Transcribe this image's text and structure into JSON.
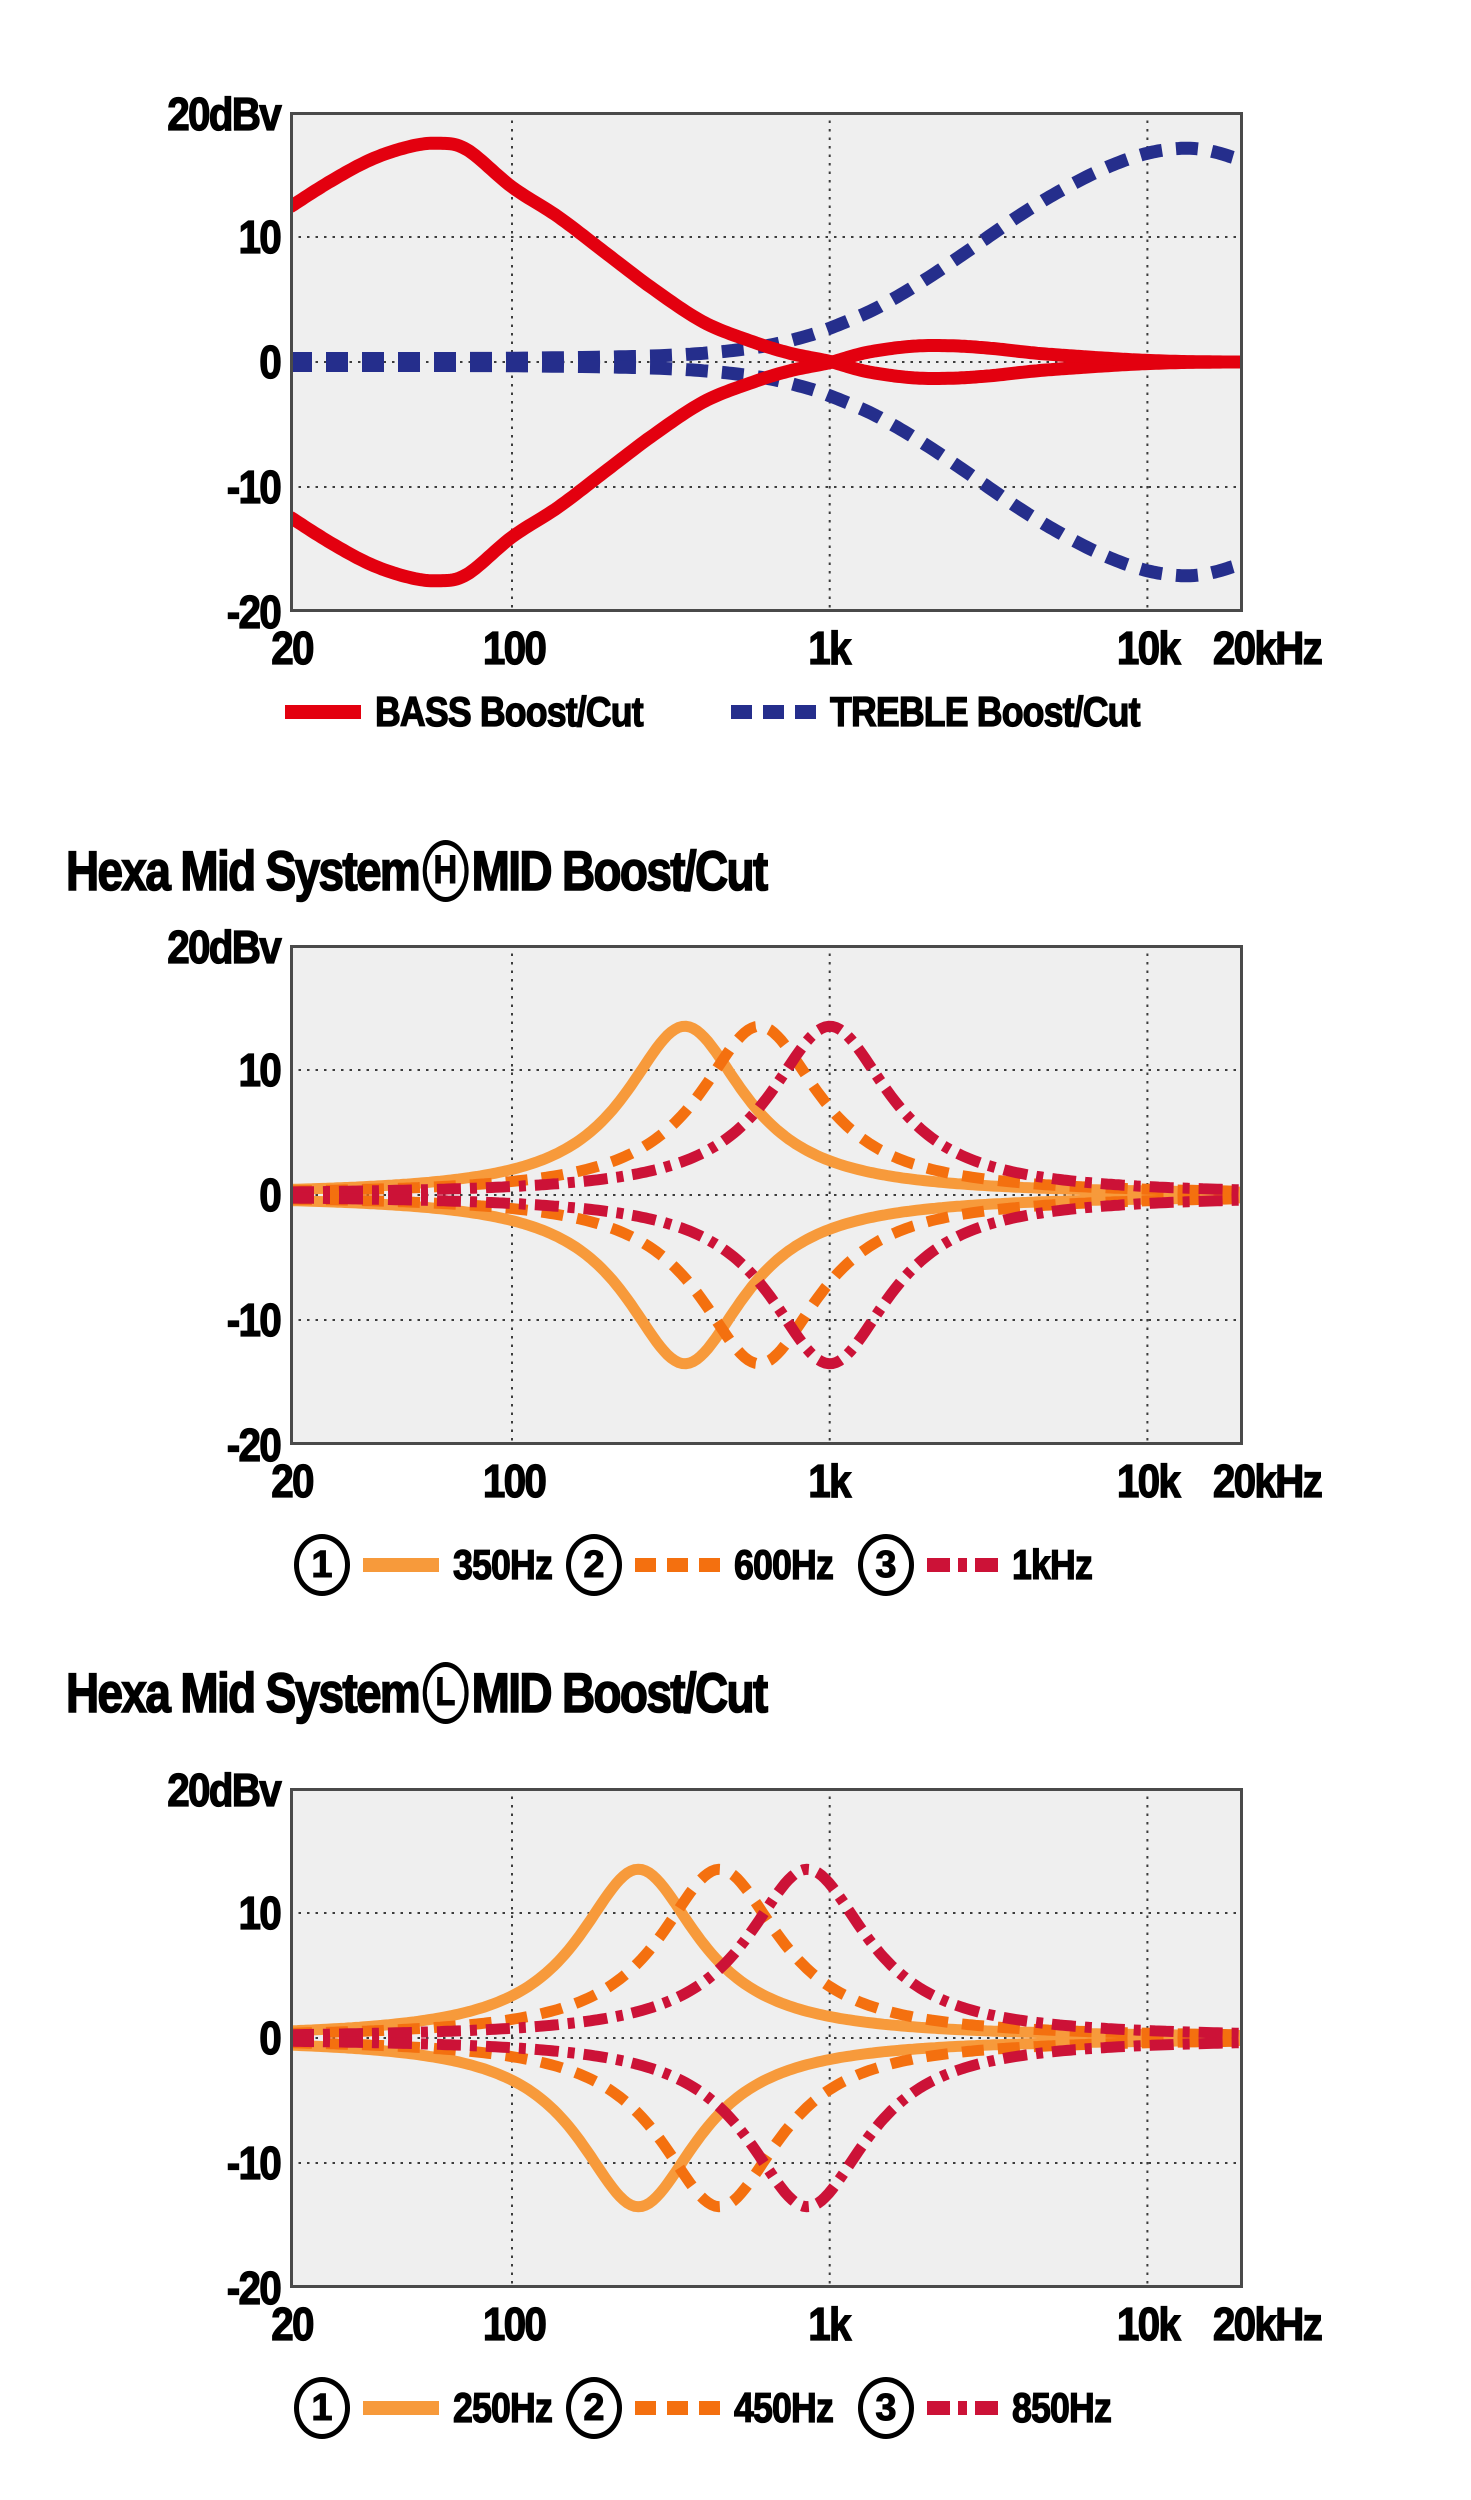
{
  "chart_data": [
    {
      "type": "line",
      "title_prefix": "",
      "title_circled": "",
      "title_suffix": "",
      "x_scale": "log",
      "x_range_hz": [
        20,
        20000
      ],
      "y_range_db": [
        -20,
        20
      ],
      "y_axis_unit_label": "20dBv",
      "y_ticks": [
        {
          "value": 10,
          "label": "10"
        },
        {
          "value": 0,
          "label": "0"
        },
        {
          "value": -10,
          "label": "-10"
        },
        {
          "value": -20,
          "label": "-20"
        }
      ],
      "x_ticks": [
        {
          "hz": 20,
          "label": "20"
        },
        {
          "hz": 100,
          "label": "100"
        },
        {
          "hz": 1000,
          "label": "1k"
        },
        {
          "hz": 10000,
          "label": "10k"
        },
        {
          "hz": 20000,
          "label": "20kHz"
        }
      ],
      "grid_x_hz": [
        100,
        1000,
        10000
      ],
      "grid_y_db": [
        10,
        0,
        -10
      ],
      "series": [
        {
          "name": "BASS Boost/Cut",
          "color": "#E3000F",
          "line": "solid",
          "stroke_width": 13,
          "mirrored": true,
          "points": [
            [
              20,
              12.4
            ],
            [
              27,
              14.5
            ],
            [
              36,
              16.2
            ],
            [
              47,
              17.2
            ],
            [
              58,
              17.5
            ],
            [
              72,
              17.0
            ],
            [
              100,
              14.0
            ],
            [
              140,
              11.6
            ],
            [
              200,
              8.6
            ],
            [
              280,
              5.8
            ],
            [
              400,
              3.2
            ],
            [
              560,
              1.7
            ],
            [
              750,
              0.7
            ],
            [
              1000,
              0.05
            ],
            [
              1300,
              -0.75
            ],
            [
              1800,
              -1.25
            ],
            [
              2400,
              -1.3
            ],
            [
              3200,
              -1.1
            ],
            [
              4500,
              -0.7
            ],
            [
              6500,
              -0.4
            ],
            [
              9000,
              -0.18
            ],
            [
              12000,
              -0.06
            ],
            [
              16000,
              -0.01
            ],
            [
              20000,
              0
            ]
          ]
        },
        {
          "name": "TREBLE Boost/Cut",
          "color": "#252E8C",
          "line": "dashed",
          "stroke_width": 13,
          "mirrored": true,
          "points": [
            [
              20,
              0.28
            ],
            [
              60,
              0.28
            ],
            [
              120,
              0.32
            ],
            [
              250,
              0.45
            ],
            [
              400,
              0.7
            ],
            [
              600,
              1.2
            ],
            [
              800,
              1.9
            ],
            [
              1000,
              2.7
            ],
            [
              1400,
              4.3
            ],
            [
              2000,
              6.6
            ],
            [
              2800,
              9.1
            ],
            [
              4000,
              11.8
            ],
            [
              5500,
              13.9
            ],
            [
              7500,
              15.6
            ],
            [
              10000,
              16.7
            ],
            [
              13000,
              17.1
            ],
            [
              16000,
              16.85
            ],
            [
              20000,
              16.1
            ]
          ]
        }
      ],
      "draw_order": [
        1,
        0
      ],
      "legend": [
        {
          "label": "BASS Boost/Cut",
          "line": "solid",
          "color": "#E3000F"
        },
        {
          "label": "TREBLE Boost/Cut",
          "line": "dashed",
          "color": "#252E8C"
        }
      ]
    },
    {
      "type": "line",
      "title_prefix": "Hexa Mid System",
      "title_circled": "H",
      "title_suffix": "MID Boost/Cut",
      "x_scale": "log",
      "x_range_hz": [
        20,
        20000
      ],
      "y_range_db": [
        -20,
        20
      ],
      "y_axis_unit_label": "20dBv",
      "y_ticks": [
        {
          "value": 10,
          "label": "10"
        },
        {
          "value": 0,
          "label": "0"
        },
        {
          "value": -10,
          "label": "-10"
        },
        {
          "value": -20,
          "label": "-20"
        }
      ],
      "x_ticks": [
        {
          "hz": 20,
          "label": "20"
        },
        {
          "hz": 100,
          "label": "100"
        },
        {
          "hz": 1000,
          "label": "1k"
        },
        {
          "hz": 10000,
          "label": "10k"
        },
        {
          "hz": 20000,
          "label": "20kHz"
        }
      ],
      "grid_x_hz": [
        100,
        1000,
        10000
      ],
      "grid_y_db": [
        10,
        0,
        -10
      ],
      "series": [
        {
          "name": "350Hz",
          "color": "#F79A3B",
          "line": "solid",
          "stroke_width": 11,
          "mirrored": true,
          "bell": {
            "center_hz": 350,
            "peak_db": 13.5,
            "width_decades": 0.23
          }
        },
        {
          "name": "600Hz",
          "color": "#F4700F",
          "line": "dashed",
          "stroke_width": 11,
          "mirrored": true,
          "bell": {
            "center_hz": 600,
            "peak_db": 13.5,
            "width_decades": 0.23
          }
        },
        {
          "name": "1kHz",
          "color": "#CC1237",
          "line": "dashdot",
          "stroke_width": 11,
          "mirrored": true,
          "bell": {
            "center_hz": 1000,
            "peak_db": 13.5,
            "width_decades": 0.23
          }
        }
      ],
      "draw_order": [
        0,
        1,
        2
      ],
      "legend": [
        {
          "num": "1",
          "label": "350Hz",
          "line": "solid",
          "color": "#F79A3B"
        },
        {
          "num": "2",
          "label": "600Hz",
          "line": "dashed",
          "color": "#F4700F"
        },
        {
          "num": "3",
          "label": "1kHz",
          "line": "dashdot",
          "color": "#CC1237"
        }
      ]
    },
    {
      "type": "line",
      "title_prefix": "Hexa Mid System",
      "title_circled": "L",
      "title_suffix": "MID Boost/Cut",
      "x_scale": "log",
      "x_range_hz": [
        20,
        20000
      ],
      "y_range_db": [
        -20,
        20
      ],
      "y_axis_unit_label": "20dBv",
      "y_ticks": [
        {
          "value": 10,
          "label": "10"
        },
        {
          "value": 0,
          "label": "0"
        },
        {
          "value": -10,
          "label": "-10"
        },
        {
          "value": -20,
          "label": "-20"
        }
      ],
      "x_ticks": [
        {
          "hz": 20,
          "label": "20"
        },
        {
          "hz": 100,
          "label": "100"
        },
        {
          "hz": 1000,
          "label": "1k"
        },
        {
          "hz": 10000,
          "label": "10k"
        },
        {
          "hz": 20000,
          "label": "20kHz"
        }
      ],
      "grid_x_hz": [
        100,
        1000,
        10000
      ],
      "grid_y_db": [
        10,
        0,
        -10
      ],
      "series": [
        {
          "name": "250Hz",
          "color": "#F79A3B",
          "line": "solid",
          "stroke_width": 11,
          "mirrored": true,
          "bell": {
            "center_hz": 250,
            "peak_db": 13.5,
            "width_decades": 0.23
          }
        },
        {
          "name": "450Hz",
          "color": "#F4700F",
          "line": "dashed",
          "stroke_width": 11,
          "mirrored": true,
          "bell": {
            "center_hz": 450,
            "peak_db": 13.5,
            "width_decades": 0.23
          }
        },
        {
          "name": "850Hz",
          "color": "#CC1237",
          "line": "dashdot",
          "stroke_width": 11,
          "mirrored": true,
          "bell": {
            "center_hz": 850,
            "peak_db": 13.5,
            "width_decades": 0.23
          }
        }
      ],
      "draw_order": [
        0,
        1,
        2
      ],
      "legend": [
        {
          "num": "1",
          "label": "250Hz",
          "line": "solid",
          "color": "#F79A3B"
        },
        {
          "num": "2",
          "label": "450Hz",
          "line": "dashed",
          "color": "#F4700F"
        },
        {
          "num": "3",
          "label": "850Hz",
          "line": "dashdot",
          "color": "#CC1237"
        }
      ]
    }
  ],
  "plot_style": {
    "background": "#EFEFEF",
    "border_color": "#4A4A4A",
    "grid_color": "#3C3C3C"
  }
}
